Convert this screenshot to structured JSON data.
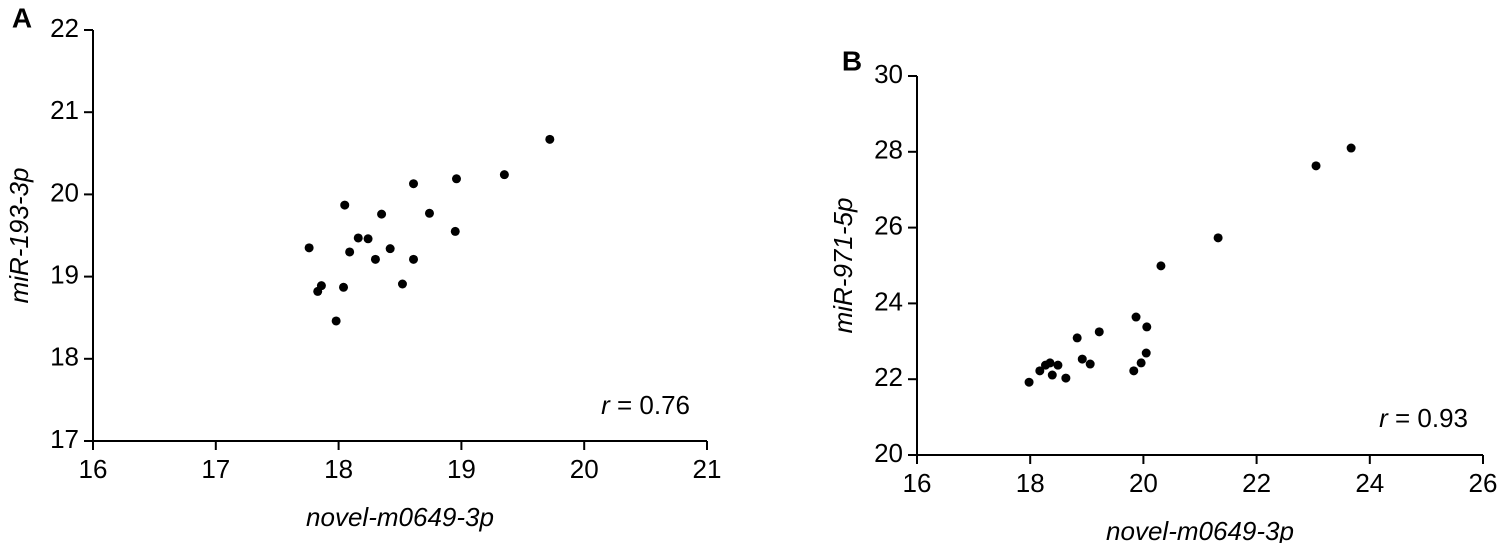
{
  "chart_data": [
    {
      "type": "scatter",
      "panel": "A",
      "x_label": "novel-m0649-3p",
      "y_label": "miR-193-3p",
      "annotation": "r = 0.76",
      "color": "#000000",
      "x": [
        17.76,
        17.83,
        17.86,
        17.98,
        18.05,
        18.04,
        18.09,
        18.16,
        18.24,
        18.3,
        18.35,
        18.42,
        18.52,
        18.61,
        18.61,
        18.74,
        18.95,
        18.96,
        19.35,
        19.72
      ],
      "y": [
        19.35,
        18.82,
        18.89,
        18.46,
        19.87,
        18.87,
        19.3,
        19.47,
        19.46,
        19.21,
        19.76,
        19.34,
        18.91,
        20.13,
        19.21,
        19.77,
        19.55,
        20.19,
        20.24,
        20.67
      ],
      "xlim": [
        16,
        21
      ],
      "xticks": [
        16,
        17,
        18,
        19,
        20,
        21
      ],
      "ylim": [
        17,
        22
      ],
      "yticks": [
        17,
        18,
        19,
        20,
        21,
        22
      ]
    },
    {
      "type": "scatter",
      "panel": "B",
      "x_label": "novel-m0649-3p",
      "y_label": "miR-971-5p",
      "annotation": "r = 0.93",
      "color": "#000000",
      "x": [
        17.98,
        18.17,
        18.27,
        18.35,
        18.39,
        18.49,
        18.63,
        18.83,
        18.92,
        19.06,
        19.22,
        19.83,
        19.87,
        19.96,
        20.05,
        20.06,
        20.31,
        21.32,
        23.05,
        23.67
      ],
      "y": [
        21.92,
        22.22,
        22.37,
        22.43,
        22.11,
        22.37,
        22.03,
        23.09,
        22.53,
        22.4,
        23.25,
        22.22,
        23.64,
        22.43,
        22.69,
        23.38,
        24.99,
        25.73,
        27.63,
        28.1
      ],
      "xlim": [
        16,
        26
      ],
      "xticks": [
        16,
        18,
        20,
        22,
        24,
        26
      ],
      "ylim": [
        20,
        30
      ],
      "yticks": [
        20,
        22,
        24,
        26,
        28,
        30
      ]
    }
  ]
}
